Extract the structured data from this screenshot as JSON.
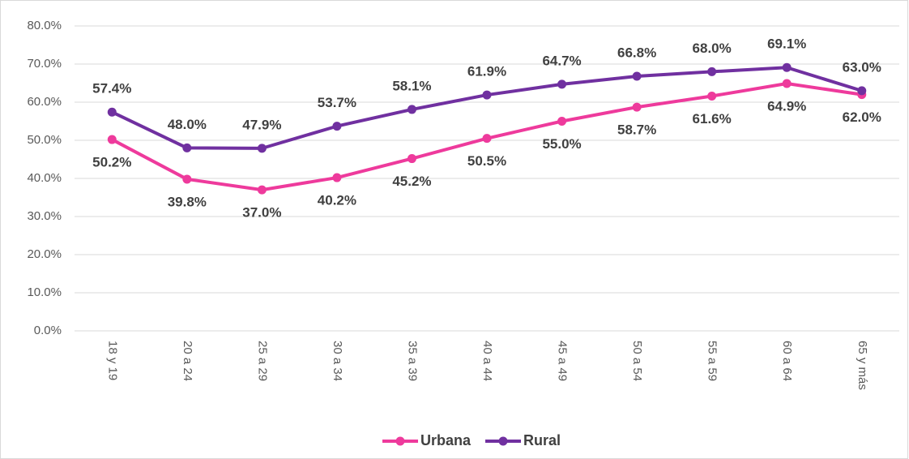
{
  "chart_data": {
    "type": "line",
    "categories": [
      "18 y 19",
      "20 a 24",
      "25 a 29",
      "30 a 34",
      "35 a 39",
      "40 a 44",
      "45 a 49",
      "50 a 54",
      "55 a 59",
      "60 a 64",
      "65 y más"
    ],
    "series": [
      {
        "name": "Urbana",
        "color": "#ee3a9c",
        "values": [
          50.2,
          39.8,
          37.0,
          40.2,
          45.2,
          50.5,
          55.0,
          58.7,
          61.6,
          64.9,
          62.0
        ],
        "value_labels": [
          "50.2%",
          "39.8%",
          "37.0%",
          "40.2%",
          "45.2%",
          "50.5%",
          "55.0%",
          "58.7%",
          "61.6%",
          "64.9%",
          "62.0%"
        ]
      },
      {
        "name": "Rural",
        "color": "#7030a0",
        "values": [
          57.4,
          48.0,
          47.9,
          53.7,
          58.1,
          61.9,
          64.7,
          66.8,
          68.0,
          69.1,
          63.0
        ],
        "value_labels": [
          "57.4%",
          "48.0%",
          "47.9%",
          "53.7%",
          "58.1%",
          "61.9%",
          "64.7%",
          "66.8%",
          "68.0%",
          "69.1%",
          "63.0%"
        ]
      }
    ],
    "ylim": [
      0,
      80
    ],
    "yticks": [
      {
        "value": 0,
        "label": "0.0%"
      },
      {
        "value": 10,
        "label": "10.0%"
      },
      {
        "value": 20,
        "label": "20.0%"
      },
      {
        "value": 30,
        "label": "30.0%"
      },
      {
        "value": 40,
        "label": "40.0%"
      },
      {
        "value": 50,
        "label": "50.0%"
      },
      {
        "value": 60,
        "label": "60.0%"
      },
      {
        "value": 70,
        "label": "70.0%"
      },
      {
        "value": 80,
        "label": "80.0%"
      }
    ],
    "grid": true,
    "legend": "bottom"
  }
}
